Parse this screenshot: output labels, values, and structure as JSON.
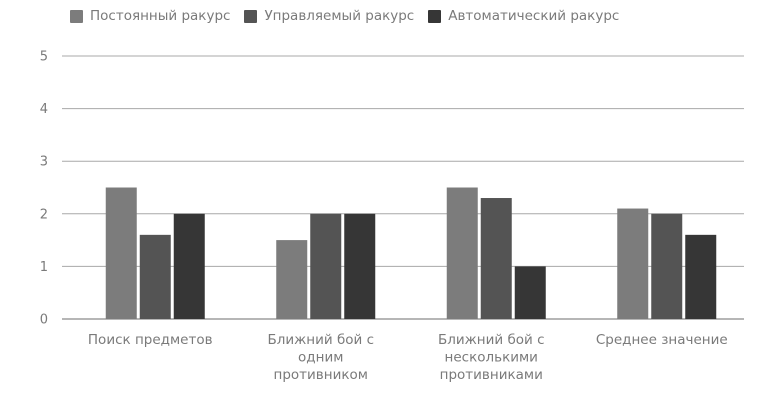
{
  "chart_data": {
    "type": "bar",
    "categories": [
      [
        "Поиск предметов"
      ],
      [
        "Ближний бой с",
        "одним",
        "противником"
      ],
      [
        "Ближний бой с",
        "несколькими",
        "противниками"
      ],
      [
        "Среднее значение"
      ]
    ],
    "series": [
      {
        "name": "Постоянный ракурс",
        "values": [
          2.5,
          1.5,
          2.5,
          2.1
        ],
        "color": "#7c7c7c"
      },
      {
        "name": "Управляемый ракурс",
        "values": [
          1.6,
          2.0,
          2.3,
          2.0
        ],
        "color": "#545454"
      },
      {
        "name": "Автоматический ракурс",
        "values": [
          2.0,
          2.0,
          1.0,
          1.6
        ],
        "color": "#363636"
      }
    ],
    "ylim": [
      0,
      5
    ],
    "yticks": [
      "0",
      "1",
      "2",
      "3",
      "4",
      "5"
    ],
    "grid": true,
    "legend_position": "top-left"
  }
}
